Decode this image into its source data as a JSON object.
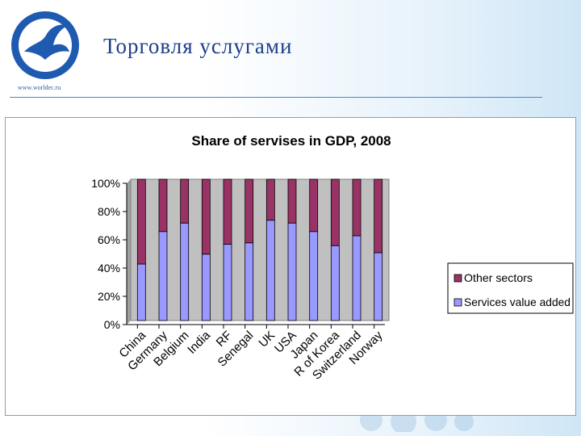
{
  "header": {
    "title": "Торговля услугами",
    "site_url": "www.worldec.ru"
  },
  "colors": {
    "other_sectors": "#993366",
    "services": "#9999ff",
    "plot_bg": "#c0c0c0",
    "title_blue": "#1f3f8a"
  },
  "chart_data": {
    "type": "bar",
    "stacked": true,
    "title": "Share of servises in GDP, 2008",
    "categories": [
      "China",
      "Germany",
      "Belgium",
      "India",
      "RF",
      "Senegal",
      "UK",
      "USA",
      "Japan",
      "R of Korea",
      "Switzerland",
      "Norway"
    ],
    "series": [
      {
        "name": "Services value added",
        "values": [
          40,
          63,
          69,
          47,
          54,
          55,
          71,
          69,
          63,
          53,
          60,
          48
        ]
      },
      {
        "name": "Other sectors",
        "values": [
          60,
          37,
          31,
          53,
          46,
          45,
          29,
          31,
          37,
          47,
          40,
          52
        ]
      }
    ],
    "ylim": [
      0,
      100
    ],
    "yticks": [
      "0%",
      "20%",
      "40%",
      "60%",
      "80%",
      "100%"
    ],
    "grid": false,
    "legend": "right"
  }
}
